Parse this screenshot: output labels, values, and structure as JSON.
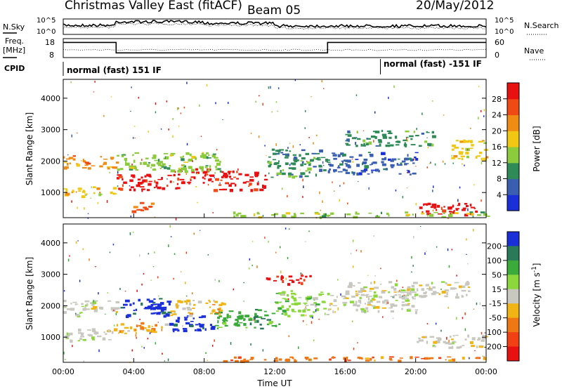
{
  "header": {
    "title": "Christmas Valley East (fitACF)",
    "beam": "Beam 05",
    "date": "20/May/2012"
  },
  "top_panels": {
    "nsky": {
      "label": "N.Sky",
      "tick_top": "10^5",
      "tick_bottom": "10^0",
      "right_label": "N.Search",
      "right_tick_top": "10^5",
      "right_tick_bottom": "10^0"
    },
    "freq": {
      "label_line1": "Freq.",
      "label_line2": "[MHz]",
      "tick_top": "18",
      "tick_bottom": "8",
      "right_label": "Nave",
      "right_tick_top": "60",
      "right_tick_bottom": "0"
    },
    "cpid": {
      "label": "CPID",
      "mode1": "normal (fast) 151 IF",
      "mode2": "normal (fast) -151 IF",
      "switch_time_hours": 18
    },
    "freq_steps": [
      {
        "start_h": 0,
        "end_h": 3,
        "level": 0.8
      },
      {
        "start_h": 3,
        "end_h": 15,
        "level": 0.25
      },
      {
        "start_h": 15,
        "end_h": 24,
        "level": 0.8
      }
    ]
  },
  "chart_data": [
    {
      "type": "heatmap",
      "name": "power-panel",
      "ylabel": "Slant Range [km]",
      "xlabel": "",
      "x_range_h": [
        0,
        24
      ],
      "ylim": [
        200,
        4600
      ],
      "y_ticks": [
        1000,
        2000,
        3000,
        4000
      ],
      "colorbar": {
        "label": "Power [dB]",
        "ticks": [
          "4",
          "8",
          "12",
          "16",
          "20",
          "24",
          "28"
        ],
        "colors": [
          "#1b2fd8",
          "#3a5fb0",
          "#2e8b57",
          "#8ccc3c",
          "#f0c814",
          "#f08c14",
          "#f04a14",
          "#e81010"
        ]
      },
      "regions": [
        {
          "x0": 0.0,
          "x1": 3.0,
          "y0": 1800,
          "y1": 2200,
          "level": 5
        },
        {
          "x0": 0.0,
          "x1": 3.0,
          "y0": 900,
          "y1": 1200,
          "level": 4
        },
        {
          "x0": 3.0,
          "x1": 6.5,
          "y0": 1100,
          "y1": 1600,
          "level": 7
        },
        {
          "x0": 3.5,
          "x1": 5.0,
          "y0": 400,
          "y1": 700,
          "level": 6
        },
        {
          "x0": 6.5,
          "x1": 8.5,
          "y0": 1300,
          "y1": 1800,
          "level": 7
        },
        {
          "x0": 8.5,
          "x1": 11.5,
          "y0": 1100,
          "y1": 1700,
          "level": 7
        },
        {
          "x0": 3.0,
          "x1": 9.0,
          "y0": 1700,
          "y1": 2300,
          "level": 3
        },
        {
          "x0": 11.5,
          "x1": 15.0,
          "y0": 1500,
          "y1": 2400,
          "level": 2
        },
        {
          "x0": 15.0,
          "x1": 20.0,
          "y0": 1600,
          "y1": 2300,
          "level": 1
        },
        {
          "x0": 16.0,
          "x1": 21.0,
          "y0": 2500,
          "y1": 3000,
          "level": 2
        },
        {
          "x0": 22.0,
          "x1": 24.0,
          "y0": 2100,
          "y1": 2700,
          "level": 4
        },
        {
          "x0": 20.0,
          "x1": 23.5,
          "y0": 300,
          "y1": 700,
          "level": 7
        },
        {
          "x0": 9.5,
          "x1": 24.0,
          "y0": 250,
          "y1": 400,
          "level": 3
        }
      ]
    },
    {
      "type": "heatmap",
      "name": "velocity-panel",
      "ylabel": "Slant Range [km]",
      "xlabel": "Time UT",
      "x_range_h": [
        0,
        24
      ],
      "x_ticks": [
        "00:00",
        "04:00",
        "08:00",
        "12:00",
        "16:00",
        "20:00",
        "00:00"
      ],
      "ylim": [
        200,
        4600
      ],
      "y_ticks": [
        1000,
        2000,
        3000,
        4000
      ],
      "colorbar": {
        "label": "Velocity [m s^-1]",
        "ticks": [
          "200",
          "100",
          "50",
          "15",
          "-15",
          "-50",
          "-100",
          "-200"
        ],
        "colors": [
          "#1b2fd8",
          "#2a7a5a",
          "#3aaa3a",
          "#8cd83c",
          "#c8c8c0",
          "#f0b414",
          "#f07814",
          "#f04014",
          "#e81010"
        ]
      },
      "regions": [
        {
          "x0": 0.0,
          "x1": 3.0,
          "y0": 1700,
          "y1": 2200,
          "level": 4
        },
        {
          "x0": 0.0,
          "x1": 3.0,
          "y0": 900,
          "y1": 1300,
          "level": 4
        },
        {
          "x0": 3.0,
          "x1": 6.0,
          "y0": 1700,
          "y1": 2300,
          "level": 0
        },
        {
          "x0": 3.0,
          "x1": 6.0,
          "y0": 1100,
          "y1": 1500,
          "level": 5
        },
        {
          "x0": 6.0,
          "x1": 8.5,
          "y0": 1200,
          "y1": 1700,
          "level": 0
        },
        {
          "x0": 8.5,
          "x1": 12.5,
          "y0": 1300,
          "y1": 1900,
          "level": 2
        },
        {
          "x0": 6.0,
          "x1": 9.0,
          "y0": 1700,
          "y1": 2200,
          "level": 5
        },
        {
          "x0": 11.5,
          "x1": 14.0,
          "y0": 2700,
          "y1": 3000,
          "level": 8
        },
        {
          "x0": 12.0,
          "x1": 15.0,
          "y0": 1700,
          "y1": 2500,
          "level": 3
        },
        {
          "x0": 15.0,
          "x1": 20.0,
          "y0": 1800,
          "y1": 2400,
          "level": 4
        },
        {
          "x0": 16.0,
          "x1": 23.0,
          "y0": 2300,
          "y1": 2800,
          "level": 4
        },
        {
          "x0": 20.0,
          "x1": 24.0,
          "y0": 700,
          "y1": 1100,
          "level": 4
        },
        {
          "x0": 9.0,
          "x1": 24.0,
          "y0": 250,
          "y1": 400,
          "level": 6
        }
      ]
    }
  ]
}
